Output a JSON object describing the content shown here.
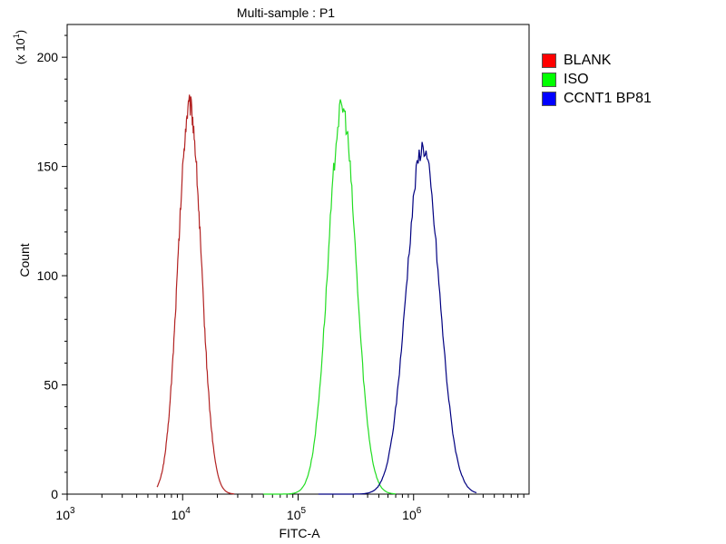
{
  "chart_data": {
    "type": "area",
    "title": "Multi-sample : P1",
    "xlabel": "FITC-A",
    "ylabel": "Count",
    "y_multiplier_label": "(x 10",
    "y_multiplier_exp": "1",
    "y_multiplier_close": ")",
    "xscale": "log",
    "xlim": [
      1000,
      10000000
    ],
    "ylim": [
      0,
      215
    ],
    "x_ticks": [
      {
        "value": 1000,
        "base": "10",
        "exp": "3"
      },
      {
        "value": 10000,
        "base": "10",
        "exp": "4"
      },
      {
        "value": 100000,
        "base": "10",
        "exp": "5"
      },
      {
        "value": 1000000,
        "base": "10",
        "exp": "6"
      }
    ],
    "y_ticks": [
      {
        "value": 0,
        "label": "0"
      },
      {
        "value": 50,
        "label": "50"
      },
      {
        "value": 100,
        "label": "100"
      },
      {
        "value": 150,
        "label": "150"
      },
      {
        "value": 200,
        "label": "200"
      }
    ],
    "grid": false,
    "legend_position": "right",
    "series": [
      {
        "name": "BLANK",
        "color": "#b22222",
        "swatch": "#ff0000",
        "peak_x": 11500,
        "peak_y": 178,
        "sigma_log10": 0.1,
        "x_range": [
          6000,
          28000
        ]
      },
      {
        "name": "ISO",
        "color": "#22dd22",
        "swatch": "#00ff00",
        "peak_x": 240000,
        "peak_y": 177,
        "sigma_log10": 0.12,
        "x_range": [
          50000,
          700000
        ]
      },
      {
        "name": "CCNT1 BP81",
        "color": "#000080",
        "swatch": "#0000ff",
        "peak_x": 1200000,
        "peak_y": 159,
        "sigma_log10": 0.14,
        "x_range": [
          150000,
          3500000
        ]
      }
    ]
  }
}
